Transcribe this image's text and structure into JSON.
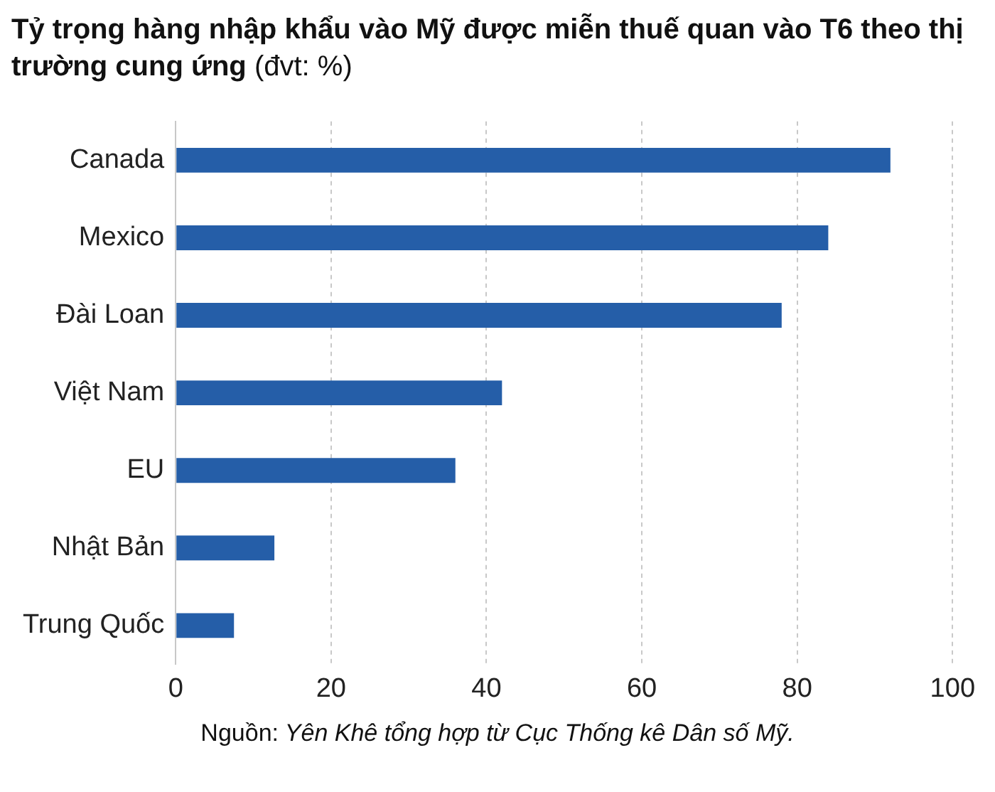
{
  "chart_data": {
    "type": "bar",
    "orientation": "horizontal",
    "title": "Tỷ trọng hàng nhập khẩu vào Mỹ được miễn thuế quan vào T6 theo thị trường cung ứng",
    "subtitle": "(đvt: %)",
    "categories": [
      "Canada",
      "Mexico",
      "Đài Loan",
      "Việt Nam",
      "EU",
      "Nhật Bản",
      "Trung Quốc"
    ],
    "values": [
      92,
      84,
      78,
      42,
      36,
      12.7,
      7.5
    ],
    "color": "#255ea8",
    "xlim": [
      0,
      100
    ],
    "xticks": [
      0,
      20,
      40,
      60,
      80,
      100
    ],
    "grid": "x",
    "annotations": [
      "Nguồn: Yên Khê tổng hợp từ Cục Thống kê Dân số Mỹ."
    ]
  }
}
